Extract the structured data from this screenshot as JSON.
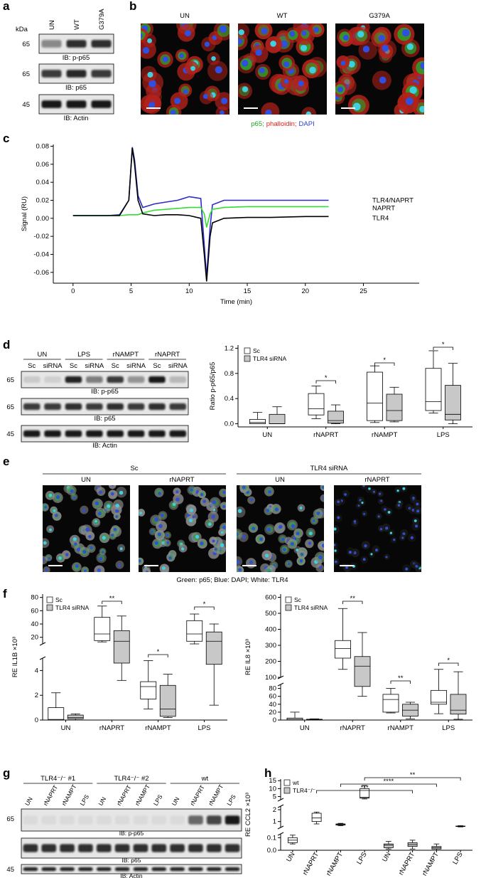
{
  "panel_labels": [
    "a",
    "b",
    "c",
    "d",
    "e",
    "f",
    "g",
    "h"
  ],
  "panel_a": {
    "kda": "kDa",
    "lanes": [
      "UN",
      "WT",
      "G379A"
    ],
    "markers": [
      "65",
      "65",
      "45"
    ],
    "antibodies": [
      "IB: p-p65",
      "IB: p65",
      "IB: Actin"
    ]
  },
  "panel_b": {
    "titles": [
      "UN",
      "WT",
      "G379A"
    ],
    "legend": [
      {
        "text": "p65;",
        "color": "#1fa81f"
      },
      {
        "text": "phalloidin;",
        "color": "#e0201a"
      },
      {
        "text": "DAPI",
        "color": "#2a3fd0"
      }
    ]
  },
  "panel_d_blot": {
    "groups": [
      "UN",
      "LPS",
      "rNAMPT",
      "rNAPRT"
    ],
    "lanes": [
      "Sc",
      "siRNA",
      "Sc",
      "siRNA",
      "Sc",
      "siRNA",
      "Sc",
      "siRNA"
    ],
    "markers": [
      "65",
      "65",
      "45"
    ],
    "antibodies": [
      "IB: p-p65",
      "IB: p65",
      "IB: Actin"
    ]
  },
  "panel_e": {
    "groups": [
      "Sc",
      "TLR4 siRNA"
    ],
    "titles": [
      "UN",
      "rNAPRT",
      "UN",
      "rNAPRT"
    ],
    "caption": "Green: p65; Blue: DAPI; White: TLR4"
  },
  "panel_g": {
    "groups": [
      "TLR4⁻/⁻ #1",
      "TLR4⁻/⁻ #2",
      "wt"
    ],
    "lanes": [
      "UN",
      "rNAPRT",
      "rNAMPT",
      "LPS",
      "UN",
      "rNAPRT",
      "rNAMPT",
      "LPS",
      "UN",
      "rNAPRT",
      "rNAMPT",
      "LPS"
    ],
    "markers": [
      "65",
      "45"
    ],
    "antibodies": [
      "IB: p-p65",
      "IB: p65",
      "IB: Actin"
    ]
  },
  "chart_data": [
    {
      "type": "line",
      "xlabel": "Time (min)",
      "ylabel": "Signal (RU)",
      "x": [
        0,
        1,
        2,
        3,
        4,
        4.8,
        5.1,
        5.3,
        5.6,
        6,
        7,
        8,
        9,
        10,
        11,
        11.3,
        11.5,
        11.8,
        12,
        13,
        15,
        17,
        20,
        22
      ],
      "series": [
        {
          "name": "TLR4/NAPRT",
          "color": "#2b2bc8",
          "values": [
            0.003,
            0.003,
            0.003,
            0.003,
            0.004,
            0.02,
            0.079,
            0.065,
            0.025,
            0.012,
            0.016,
            0.018,
            0.02,
            0.024,
            0.022,
            -0.03,
            -0.065,
            -0.01,
            0.015,
            0.02,
            0.02,
            0.02,
            0.02,
            0.02
          ]
        },
        {
          "name": "NAPRT",
          "color": "#33dd33",
          "values": [
            0.003,
            0.003,
            0.003,
            0.003,
            0.003,
            0.004,
            0.004,
            0.004,
            0.004,
            0.006,
            0.009,
            0.01,
            0.011,
            0.012,
            0.012,
            0.005,
            -0.01,
            0.005,
            0.01,
            0.012,
            0.013,
            0.013,
            0.013,
            0.013
          ]
        },
        {
          "name": "TLR4",
          "color": "#000000",
          "values": [
            0.003,
            0.003,
            0.003,
            0.003,
            0.003,
            0.02,
            0.078,
            0.06,
            0.02,
            0.005,
            0.003,
            0.004,
            0.004,
            0.003,
            0.0,
            -0.04,
            -0.07,
            -0.02,
            -0.005,
            0.0,
            0.001,
            0.001,
            0.002,
            0.002
          ]
        }
      ],
      "xlim": [
        -1.7,
        29.8
      ],
      "xticks": [
        0,
        5,
        10,
        15,
        20,
        25
      ],
      "ylim": [
        -0.072,
        0.082
      ],
      "yticks": [
        0.08,
        0.06,
        0.04,
        0.02,
        {
          "value": 0,
          "label": "0.00"
        },
        -0.02,
        -0.04,
        -0.06
      ]
    },
    {
      "type": "box",
      "ylabel": "Ratio p-p65/p65",
      "categories": [
        "UN",
        "rNAPRT",
        "rNAMPT",
        "LPS"
      ],
      "series": [
        {
          "name": "Sc",
          "color": "#ffffff",
          "values": [
            [
              0,
              0,
              0.02,
              0.07,
              0.18
            ],
            [
              0.08,
              0.14,
              0.24,
              0.48,
              0.6
            ],
            [
              0.02,
              0.05,
              0.33,
              0.82,
              0.92
            ],
            [
              0.17,
              0.21,
              0.35,
              0.88,
              1.16
            ]
          ]
        },
        {
          "name": "TLR4 siRNA",
          "color": "#c8c8c8",
          "values": [
            [
              0,
              0,
              0,
              0.15,
              0.27
            ],
            [
              0,
              0.01,
              0.05,
              0.2,
              0.3
            ],
            [
              0.03,
              0.05,
              0.21,
              0.47,
              0.58
            ],
            [
              0,
              0.06,
              0.15,
              0.61,
              0.96
            ]
          ]
        }
      ],
      "ylim": [
        -0.05,
        1.25
      ],
      "yticks": [
        {
          "value": 0,
          "label": "0.0"
        },
        0.4,
        0.8,
        1.2
      ],
      "annotations": [
        "*",
        "*",
        "*"
      ]
    },
    {
      "type": "box",
      "ylabel": "RE IL1B ×10³",
      "categories": [
        "UN",
        "rNAPRT",
        "rNAMPT",
        "LPS"
      ],
      "series": [
        {
          "name": "Sc",
          "color": "#ffffff",
          "values": [
            [
              0,
              0,
              0.05,
              1,
              2.2
            ],
            [
              13,
              15,
              25,
              50,
              67
            ],
            [
              0.9,
              1.7,
              2.7,
              3.1,
              4.8
            ],
            [
              10,
              14,
              25,
              45,
              55
            ]
          ]
        },
        {
          "name": "TLR4 siRNA",
          "color": "#c8c8c8",
          "values": [
            [
              0,
              0.1,
              0.2,
              0.4,
              0.5
            ],
            [
              3.2,
              4.6,
              14,
              30,
              52
            ],
            [
              0.2,
              0.3,
              0.9,
              2.8,
              3.7
            ],
            [
              1.2,
              4.5,
              14,
              28,
              40
            ]
          ]
        }
      ],
      "axis_segments": [
        {
          "ylim": [
            0,
            5
          ],
          "yticks": [
            0,
            2,
            4
          ]
        },
        {
          "ylim": [
            10,
            85
          ],
          "yticks": [
            20,
            40,
            60,
            80
          ]
        }
      ],
      "annotations": [
        "**",
        "*",
        "*"
      ]
    },
    {
      "type": "box",
      "ylabel": "RE IL8 ×10³",
      "categories": [
        "UN",
        "rNAPRT",
        "rNAMPT",
        "LPS"
      ],
      "series": [
        {
          "name": "Sc",
          "color": "#ffffff",
          "values": [
            [
              0,
              0,
              2,
              5,
              20
            ],
            [
              150,
              220,
              280,
              330,
              530
            ],
            [
              18,
              20,
              52,
              65,
              80
            ],
            [
              16,
              40,
              45,
              75,
              150
            ]
          ]
        },
        {
          "name": "TLR4 siRNA",
          "color": "#c8c8c8",
          "values": [
            [
              0,
              0,
              1,
              2,
              3
            ],
            [
              60,
              85,
              170,
              230,
              380
            ],
            [
              3,
              10,
              25,
              40,
              45
            ],
            [
              2,
              15,
              25,
              65,
              135
            ]
          ]
        }
      ],
      "axis_segments": [
        {
          "ylim": [
            0,
            90
          ],
          "yticks": [
            0,
            20,
            40,
            60,
            80
          ]
        },
        {
          "ylim": [
            100,
            620
          ],
          "yticks": [
            100,
            200,
            300,
            400,
            500,
            600
          ]
        }
      ],
      "annotations": [
        "**",
        "**",
        "*"
      ]
    },
    {
      "type": "box",
      "ylabel": "RE CCL2 ×10³",
      "categories": [
        "UN",
        "rNAPRT",
        "rNAMPT",
        "LPS",
        "UN",
        "rNAPRT",
        "rNAMPT",
        "LPS"
      ],
      "series": [
        {
          "name": "wt",
          "color": "#ffffff",
          "values": [
            [
              0.05,
              0.06,
              0.08,
              0.1,
              0.12
            ],
            [
              0.8,
              1.0,
              1.3,
              1.7,
              1.8
            ],
            [
              0.65,
              0.7,
              0.75,
              0.8,
              0.85
            ],
            [
              3.5,
              4,
              4.5,
              10,
              12
            ],
            null,
            null,
            null,
            null
          ]
        },
        {
          "name": "TLR4⁻/⁻",
          "color": "#c8c8c8",
          "values": [
            null,
            null,
            null,
            null,
            [
              0.01,
              0.02,
              0.04,
              0.05,
              0.07
            ],
            [
              0.01,
              0.03,
              0.045,
              0.06,
              0.08
            ],
            [
              0,
              0.01,
              0.02,
              0.03,
              0.05
            ],
            [
              0.55,
              0.58,
              0.6,
              0.62,
              0.65
            ]
          ]
        }
      ],
      "axis_segments": [
        {
          "ylim": [
            0,
            0.13
          ],
          "yticks": [
            {
              "value": 0,
              "label": "0.0"
            },
            0.1
          ]
        },
        {
          "ylim": [
            0.5,
            2.3
          ],
          "yticks": [
            1,
            2
          ]
        },
        {
          "ylim": [
            3,
            16
          ],
          "yticks": [
            5,
            10,
            15
          ]
        }
      ],
      "annotations": [
        "***",
        "****",
        "**"
      ]
    }
  ]
}
